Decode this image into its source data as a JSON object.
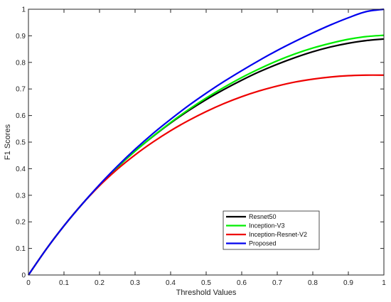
{
  "chart_data": {
    "type": "line",
    "title": "",
    "xlabel": "Threshold Values",
    "ylabel": "F1 Scores",
    "xlim": [
      0,
      1
    ],
    "ylim": [
      0,
      1
    ],
    "xticks": [
      0,
      0.1,
      0.2,
      0.3,
      0.4,
      0.5,
      0.6,
      0.7,
      0.8,
      0.9,
      1
    ],
    "xtick_labels": [
      "0",
      "0.1",
      "0.2",
      "0.3",
      "0.4",
      "0.5",
      "0.6",
      "0.7",
      "0.8",
      "0.9",
      "1"
    ],
    "yticks": [
      0,
      0.1,
      0.2,
      0.3,
      0.4,
      0.5,
      0.6,
      0.7,
      0.8,
      0.9,
      1
    ],
    "ytick_labels": [
      "0",
      "0.1",
      "0.2",
      "0.3",
      "0.4",
      "0.5",
      "0.6",
      "0.7",
      "0.8",
      "0.9",
      "1"
    ],
    "grid": false,
    "legend_position": "bottom-right",
    "x": [
      0,
      0.05,
      0.1,
      0.15,
      0.2,
      0.25,
      0.3,
      0.35,
      0.4,
      0.45,
      0.5,
      0.55,
      0.6,
      0.65,
      0.7,
      0.75,
      0.8,
      0.85,
      0.9,
      0.95,
      1
    ],
    "series": [
      {
        "name": "Resnet50",
        "color": "#000000",
        "values": [
          0,
          0.097,
          0.185,
          0.265,
          0.338,
          0.405,
          0.466,
          0.521,
          0.572,
          0.618,
          0.66,
          0.698,
          0.733,
          0.765,
          0.793,
          0.818,
          0.84,
          0.858,
          0.872,
          0.882,
          0.888
        ]
      },
      {
        "name": "Inception-V3",
        "color": "#00ee00",
        "values": [
          0,
          0.097,
          0.185,
          0.265,
          0.338,
          0.405,
          0.466,
          0.522,
          0.574,
          0.622,
          0.666,
          0.706,
          0.743,
          0.776,
          0.806,
          0.832,
          0.854,
          0.872,
          0.887,
          0.897,
          0.902
        ]
      },
      {
        "name": "Inception-Resnet-V2",
        "color": "#ee0000",
        "values": [
          0,
          0.097,
          0.185,
          0.265,
          0.336,
          0.398,
          0.452,
          0.5,
          0.543,
          0.581,
          0.615,
          0.645,
          0.671,
          0.693,
          0.711,
          0.726,
          0.737,
          0.745,
          0.75,
          0.752,
          0.752
        ]
      },
      {
        "name": "Proposed",
        "color": "#0000ee",
        "values": [
          0,
          0.097,
          0.185,
          0.265,
          0.34,
          0.409,
          0.473,
          0.532,
          0.586,
          0.637,
          0.684,
          0.728,
          0.769,
          0.808,
          0.845,
          0.879,
          0.911,
          0.941,
          0.968,
          0.991,
          1.0
        ]
      }
    ]
  }
}
